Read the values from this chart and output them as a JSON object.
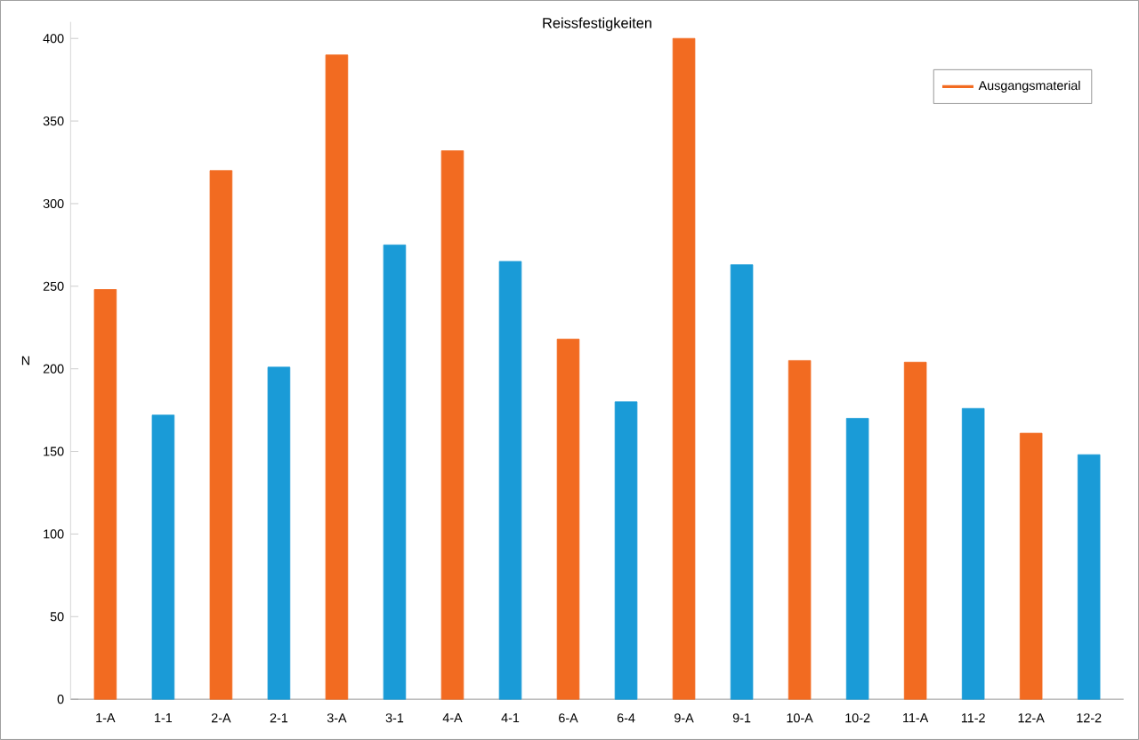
{
  "chart_data": {
    "type": "bar",
    "title": "Reissfestigkeiten",
    "ylabel": "N",
    "categories": [
      "1-A",
      "1-1",
      "2-A",
      "2-1",
      "3-A",
      "3-1",
      "4-A",
      "4-1",
      "6-A",
      "6-4",
      "9-A",
      "9-1",
      "10-A",
      "10-2",
      "11-A",
      "11-2",
      "12-A",
      "12-2"
    ],
    "series": [
      {
        "name": "Ausgangsmaterial",
        "color": "#f26b21",
        "values": [
          248,
          null,
          320,
          null,
          390,
          null,
          332,
          null,
          218,
          null,
          400,
          null,
          205,
          null,
          204,
          null,
          161,
          null
        ]
      },
      {
        "color": "#1a9bd7",
        "values": [
          null,
          172,
          null,
          201,
          null,
          275,
          null,
          265,
          null,
          180,
          null,
          263,
          null,
          170,
          null,
          176,
          null,
          148
        ]
      }
    ],
    "ylim": [
      0,
      410
    ],
    "yticks": [
      0,
      50,
      100,
      150,
      200,
      250,
      300,
      350,
      400
    ],
    "legend": "top right"
  }
}
